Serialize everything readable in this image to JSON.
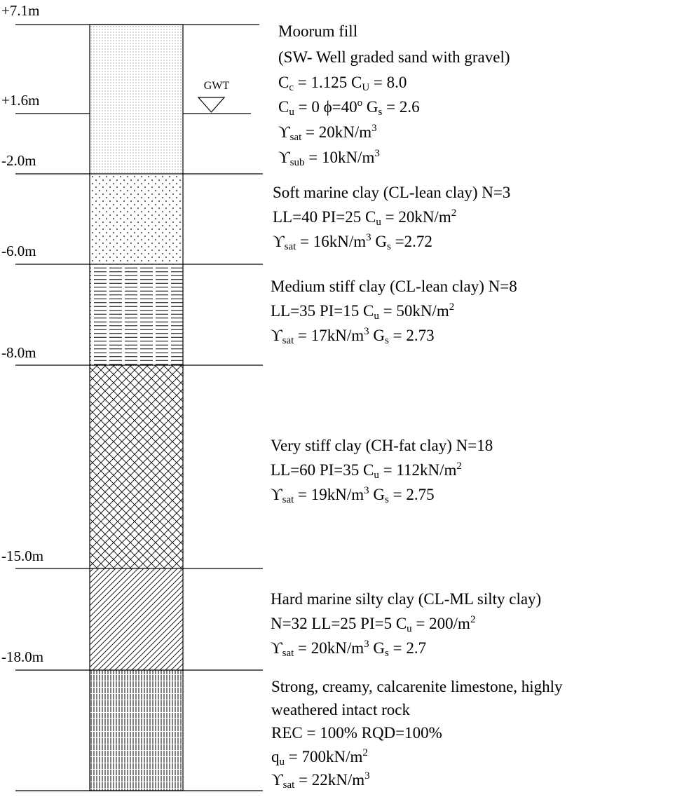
{
  "gwt_label": "GWT",
  "elevations": [
    "+7.1m",
    "+1.6m",
    "-2.0m",
    "-6.0m",
    "-8.0m",
    "-15.0m",
    "-18.0m"
  ],
  "layers": [
    {
      "lines": [
        [
          "Moorum fill"
        ],
        [
          "(SW- Well graded sand with gravel)"
        ],
        [
          "C",
          {
            "sub": "c"
          },
          " = 1.125     C",
          {
            "sub": "U"
          },
          " = 8.0"
        ],
        [
          "C",
          {
            "sub": "u"
          },
          " = 0    ϕ=40",
          {
            "sup": "o"
          },
          "      G",
          {
            "sub": "s"
          },
          " = 2.6"
        ],
        [
          "ϒ",
          {
            "sub": "sat"
          },
          " = 20kN/m",
          {
            "sup": "3"
          }
        ],
        [
          "ϒ",
          {
            "sub": "sub"
          },
          " = 10kN/m",
          {
            "sup": "3"
          }
        ]
      ]
    },
    {
      "lines": [
        [
          "Soft marine clay (CL-lean clay)  N=3"
        ],
        [
          "LL=40   PI=25   C",
          {
            "sub": "u"
          },
          " = 20kN/m",
          {
            "sup": "2"
          }
        ],
        [
          "ϒ",
          {
            "sub": "sat"
          },
          " = 16kN/m",
          {
            "sup": "3"
          },
          "     G",
          {
            "sub": "s"
          },
          " =2.72"
        ]
      ]
    },
    {
      "lines": [
        [
          "Medium stiff clay (CL-lean clay)  N=8"
        ],
        [
          "LL=35    PI=15   C",
          {
            "sub": "u"
          },
          " = 50kN/m",
          {
            "sup": "2"
          }
        ],
        [
          "ϒ",
          {
            "sub": "sat"
          },
          " = 17kN/m",
          {
            "sup": "3"
          },
          "  G",
          {
            "sub": "s"
          },
          " = 2.73"
        ]
      ]
    },
    {
      "lines": [
        [
          "Very stiff clay (CH-fat clay)  N=18"
        ],
        [
          "LL=60    PI=35   C",
          {
            "sub": "u"
          },
          " = 112kN/m",
          {
            "sup": "2"
          }
        ],
        [
          "ϒ",
          {
            "sub": "sat"
          },
          " = 19kN/m",
          {
            "sup": "3"
          },
          "  G",
          {
            "sub": "s"
          },
          " = 2.75"
        ]
      ]
    },
    {
      "lines": [
        [
          "Hard marine silty clay (CL-ML silty clay)"
        ],
        [
          "N=32 LL=25   PI=5   C",
          {
            "sub": "u"
          },
          " = 200/m",
          {
            "sup": "2"
          }
        ],
        [
          "ϒ",
          {
            "sub": "sat"
          },
          " = 20kN/m",
          {
            "sup": "3"
          },
          "  G",
          {
            "sub": "s"
          },
          " = 2.7"
        ]
      ]
    },
    {
      "lines": [
        [
          "Strong, creamy, calcarenite limestone, highly"
        ],
        [
          "weathered intact rock"
        ],
        [
          "REC = 100% RQD=100%"
        ],
        [
          "q",
          {
            "sub": "u"
          },
          " = 700kN/m",
          {
            "sup": "2"
          }
        ],
        [
          "ϒ",
          {
            "sub": "sat"
          },
          " = 22kN/m",
          {
            "sup": "3"
          }
        ]
      ]
    }
  ]
}
